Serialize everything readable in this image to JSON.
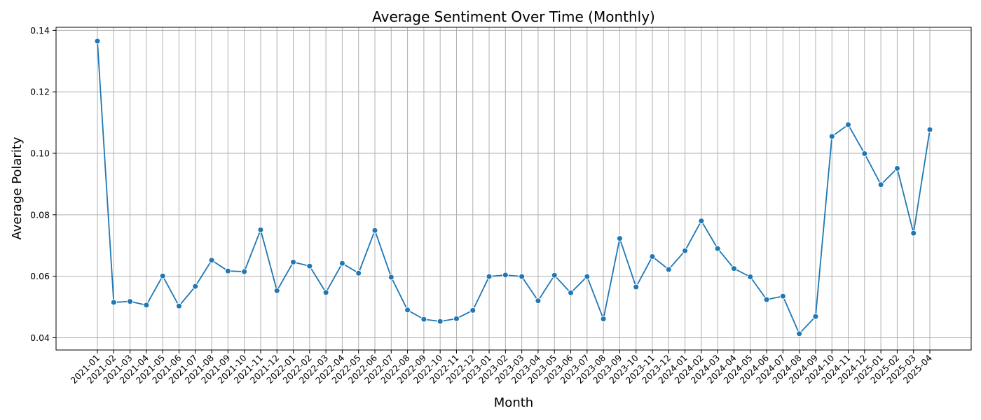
{
  "chart_data": {
    "type": "line",
    "title": "Average Sentiment Over Time (Monthly)",
    "xlabel": "Month",
    "ylabel": "Average Polarity",
    "ylim": [
      0.036,
      0.141
    ],
    "yticks": [
      0.04,
      0.06,
      0.08,
      0.1,
      0.12,
      0.14
    ],
    "ytick_labels": [
      "0.04",
      "0.06",
      "0.08",
      "0.10",
      "0.12",
      "0.14"
    ],
    "grid": true,
    "color": "#1f77b4",
    "marker": "circle",
    "categories": [
      "2021-01",
      "2021-02",
      "2021-03",
      "2021-04",
      "2021-05",
      "2021-06",
      "2021-07",
      "2021-08",
      "2021-09",
      "2021-10",
      "2021-11",
      "2021-12",
      "2022-01",
      "2022-02",
      "2022-03",
      "2022-04",
      "2022-05",
      "2022-06",
      "2022-07",
      "2022-08",
      "2022-09",
      "2022-10",
      "2022-11",
      "2022-12",
      "2023-01",
      "2023-02",
      "2023-03",
      "2023-04",
      "2023-05",
      "2023-06",
      "2023-07",
      "2023-08",
      "2023-09",
      "2023-10",
      "2023-11",
      "2023-12",
      "2024-01",
      "2024-02",
      "2024-03",
      "2024-04",
      "2024-05",
      "2024-06",
      "2024-07",
      "2024-08",
      "2024-09",
      "2024-10",
      "2024-11",
      "2024-12",
      "2025-01",
      "2025-02",
      "2025-03",
      "2025-04"
    ],
    "values": [
      0.1365,
      0.0515,
      0.0518,
      0.0506,
      0.0601,
      0.0503,
      0.0567,
      0.0652,
      0.0617,
      0.0615,
      0.0751,
      0.0553,
      0.0646,
      0.0633,
      0.0547,
      0.0642,
      0.061,
      0.0749,
      0.0597,
      0.049,
      0.046,
      0.0453,
      0.0462,
      0.0489,
      0.0599,
      0.0604,
      0.0599,
      0.052,
      0.0603,
      0.0546,
      0.0599,
      0.0461,
      0.0723,
      0.0565,
      0.0664,
      0.0622,
      0.0683,
      0.078,
      0.069,
      0.0625,
      0.0598,
      0.0524,
      0.0535,
      0.0413,
      0.0469,
      0.1055,
      0.1093,
      0.0999,
      0.0898,
      0.0951,
      0.074,
      0.1077
    ]
  }
}
